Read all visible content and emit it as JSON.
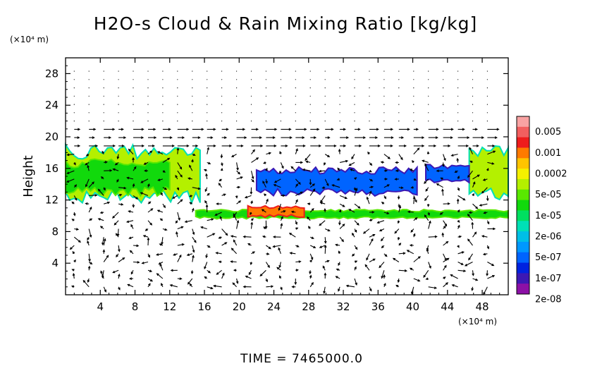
{
  "chart_data": {
    "type": "heatmap",
    "title": "H2O-s Cloud & Rain Mixing Ratio [kg/kg]",
    "ylabel": "Height",
    "xlabel": "",
    "x_unit": "(×10⁴ m)",
    "y_unit": "(×10⁴ m)",
    "xlim": [
      0,
      51
    ],
    "ylim": [
      0,
      30
    ],
    "x_ticks": [
      4,
      8,
      12,
      16,
      20,
      24,
      28,
      32,
      36,
      40,
      44,
      48
    ],
    "y_ticks": [
      4,
      8,
      12,
      16,
      20,
      24,
      28
    ],
    "grid": false,
    "legend_placement": "right",
    "colorbar": {
      "labels": [
        "0.005",
        "0.001",
        "0.0002",
        "5e-05",
        "1e-05",
        "2e-06",
        "5e-07",
        "1e-07",
        "2e-08"
      ],
      "colors": [
        "#f9a3a3",
        "#f25f5f",
        "#ee1c1c",
        "#ff7a00",
        "#ffc400",
        "#f5f000",
        "#b4f000",
        "#59e800",
        "#11d90c",
        "#00e060",
        "#00e0b6",
        "#00bfe6",
        "#0098ff",
        "#0064ff",
        "#0022e0",
        "#3c18b4",
        "#8c10a6"
      ]
    },
    "vector_overlay": "wind-arrows",
    "regions": [
      {
        "name": "upper-cloud-left",
        "level": "5e-05",
        "x": [
          0,
          15.5
        ],
        "y": [
          11.6,
          19.0
        ]
      },
      {
        "name": "upper-cloud-core-left",
        "level": "1e-05",
        "x": [
          0,
          12.0
        ],
        "y": [
          12.5,
          17.2
        ]
      },
      {
        "name": "upper-cloud-right",
        "level": "5e-05",
        "x": [
          46.5,
          51
        ],
        "y": [
          11.8,
          19.0
        ]
      },
      {
        "name": "upper-cloud-mid",
        "level": "1e-07",
        "x": [
          22.0,
          40.5
        ],
        "y": [
          12.5,
          16.2
        ]
      },
      {
        "name": "cloud-41-46",
        "level": "1e-07",
        "x": [
          41.5,
          46.5
        ],
        "y": [
          14.0,
          16.6
        ]
      },
      {
        "name": "low-layer",
        "level": "1e-05",
        "x": [
          15.0,
          51
        ],
        "y": [
          9.6,
          10.8
        ]
      },
      {
        "name": "low-layer-peak",
        "level": "0.0002",
        "x": [
          21.0,
          27.5
        ],
        "y": [
          9.8,
          11.3
        ]
      }
    ],
    "footer": "TIME = 7465000.0"
  }
}
